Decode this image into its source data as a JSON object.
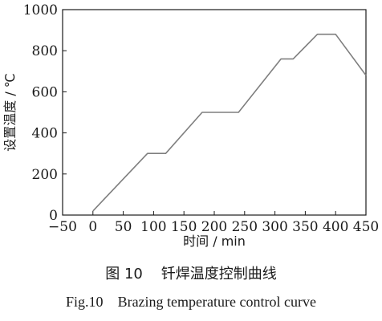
{
  "chart_data": {
    "type": "line",
    "xlabel": "时间 / min",
    "ylabel": "设置温度 / ℃",
    "xlim": [
      -50,
      450
    ],
    "ylim": [
      0,
      1000
    ],
    "xticks": [
      -50,
      0,
      50,
      100,
      150,
      200,
      250,
      300,
      350,
      400,
      450
    ],
    "yticks": [
      0,
      200,
      400,
      600,
      800,
      1000
    ],
    "grid": false,
    "series": [
      {
        "color": "#7f7f7f",
        "x": [
          0,
          90,
          120,
          180,
          240,
          310,
          330,
          370,
          400,
          450
        ],
        "y": [
          20,
          300,
          300,
          500,
          500,
          760,
          760,
          880,
          880,
          680
        ]
      }
    ]
  },
  "caption": {
    "cn_label": "图 10",
    "cn_title": "钎焊温度控制曲线",
    "en_label": "Fig.10",
    "en_title": "Brazing temperature control curve"
  }
}
